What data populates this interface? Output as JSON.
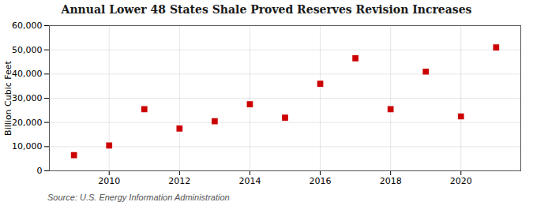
{
  "chart_data": {
    "type": "scatter",
    "title": "Annual Lower 48 States Shale Proved Reserves Revision Increases",
    "ylabel": "Billion Cubic Feet",
    "source": "Source: U.S. Energy Information Administration",
    "x": [
      2009,
      2010,
      2011,
      2012,
      2013,
      2014,
      2015,
      2016,
      2017,
      2018,
      2019,
      2020,
      2021
    ],
    "values": [
      6500,
      10500,
      25500,
      17500,
      20500,
      27500,
      22000,
      36000,
      46500,
      25500,
      41000,
      22500,
      51000
    ],
    "color": "#cc0000",
    "marker": "square",
    "xlim": [
      2008.3,
      2021.7
    ],
    "xticks": [
      2010,
      2012,
      2014,
      2016,
      2018,
      2020
    ],
    "ylim": [
      0,
      60000
    ],
    "yticks": [
      0,
      {
        "value": 10000,
        "label": "10,000"
      },
      {
        "value": 20000,
        "label": "20,000"
      },
      {
        "value": 30000,
        "label": "30,000"
      },
      {
        "value": 40000,
        "label": "40,000"
      },
      {
        "value": 50000,
        "label": "50,000"
      },
      {
        "value": 60000,
        "label": "60,000"
      }
    ],
    "grid": true
  }
}
